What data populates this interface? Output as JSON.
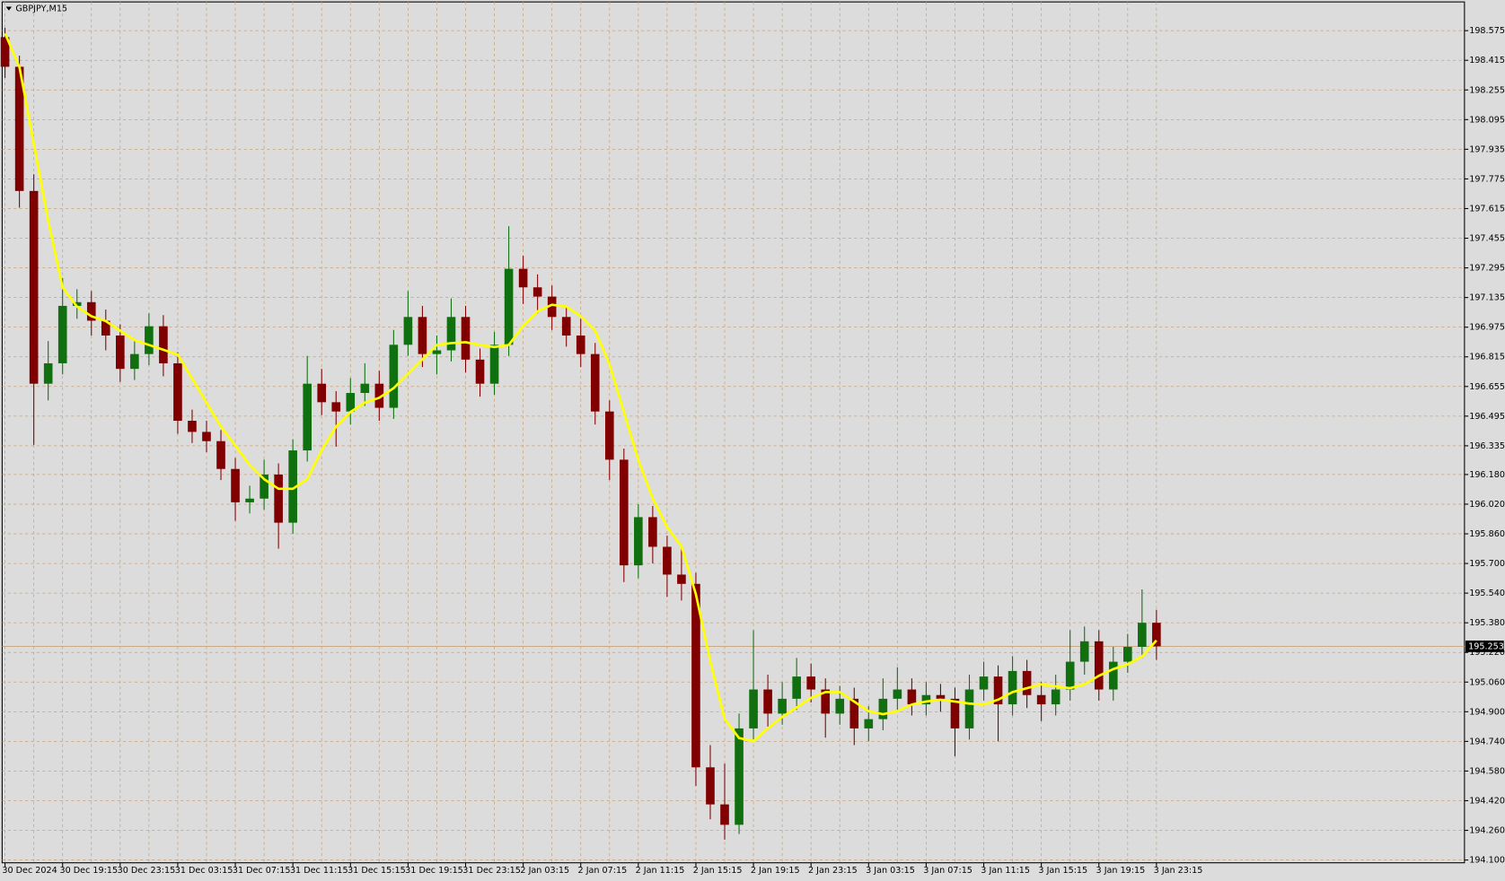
{
  "chart_data": {
    "type": "candlestick",
    "title": "GBPJPY,M15",
    "categories": [
      "30 Dec 2024",
      null,
      null,
      null,
      "30 Dec 19:15",
      null,
      null,
      null,
      "30 Dec 23:15",
      null,
      null,
      null,
      "31 Dec 03:15",
      null,
      null,
      null,
      "31 Dec 07:15",
      null,
      null,
      null,
      "31 Dec 11:15",
      null,
      null,
      null,
      "31 Dec 15:15",
      null,
      null,
      null,
      "31 Dec 19:15",
      null,
      null,
      null,
      "31 Dec 23:15",
      null,
      null,
      null,
      "2 Jan 03:15",
      null,
      null,
      null,
      "2 Jan 07:15",
      null,
      null,
      null,
      "2 Jan 11:15",
      null,
      null,
      null,
      "2 Jan 15:15",
      null,
      null,
      null,
      "2 Jan 19:15",
      null,
      null,
      null,
      "2 Jan 23:15",
      null,
      null,
      null,
      "3 Jan 03:15",
      null,
      null,
      null,
      "3 Jan 07:15",
      null,
      null,
      null,
      "3 Jan 11:15",
      null,
      null,
      null,
      "3 Jan 15:15",
      null,
      null,
      null,
      "3 Jan 19:15",
      null,
      null,
      null,
      "3 Jan 23:15"
    ],
    "open": [
      198.54,
      198.38,
      197.71,
      196.67,
      196.78,
      197.09,
      197.11,
      197.01,
      196.93,
      196.75,
      196.83,
      196.98,
      196.78,
      196.47,
      196.41,
      196.36,
      196.21,
      196.03,
      196.05,
      196.18,
      195.92,
      196.31,
      196.67,
      196.57,
      196.52,
      196.62,
      196.67,
      196.54,
      196.88,
      197.03,
      196.83,
      196.85,
      197.03,
      196.8,
      196.67,
      196.88,
      197.29,
      197.19,
      197.14,
      197.03,
      196.93,
      196.83,
      196.52,
      196.26,
      195.69,
      195.95,
      195.79,
      195.64,
      195.59,
      194.6,
      194.4,
      194.29,
      194.81,
      195.02,
      194.89,
      194.97,
      195.09,
      195.02,
      194.89,
      194.97,
      194.81,
      194.86,
      194.97,
      195.02,
      194.94,
      194.99,
      194.97,
      194.81,
      195.02,
      195.09,
      194.94,
      195.12,
      194.99,
      194.94,
      195.02,
      195.17,
      195.28,
      195.02,
      195.17,
      195.25,
      195.38
    ],
    "high": [
      198.59,
      198.44,
      197.8,
      196.9,
      197.24,
      197.18,
      197.17,
      197.07,
      196.99,
      196.9,
      197.05,
      197.04,
      196.84,
      196.53,
      196.47,
      196.42,
      196.27,
      196.12,
      196.26,
      196.24,
      196.37,
      196.82,
      196.75,
      196.63,
      196.7,
      196.78,
      196.74,
      196.96,
      197.17,
      197.09,
      196.93,
      197.13,
      197.09,
      196.86,
      196.95,
      197.52,
      197.36,
      197.26,
      197.2,
      197.09,
      197.02,
      196.89,
      196.58,
      196.32,
      196.02,
      196.01,
      195.85,
      195.79,
      195.65,
      194.72,
      194.62,
      194.89,
      195.34,
      195.1,
      195.06,
      195.19,
      195.16,
      195.08,
      195.04,
      195.03,
      194.93,
      195.08,
      195.14,
      195.08,
      195.06,
      195.05,
      195.03,
      195.1,
      195.17,
      195.15,
      195.2,
      195.18,
      195.06,
      195.1,
      195.34,
      195.36,
      195.34,
      195.25,
      195.32,
      195.56,
      195.45
    ],
    "low": [
      198.32,
      197.62,
      196.34,
      196.58,
      196.72,
      197.02,
      196.93,
      196.85,
      196.68,
      196.69,
      196.77,
      196.71,
      196.4,
      196.35,
      196.3,
      196.15,
      195.93,
      195.97,
      195.99,
      195.78,
      195.86,
      196.25,
      196.5,
      196.33,
      196.45,
      196.55,
      196.47,
      196.48,
      196.82,
      196.76,
      196.72,
      196.79,
      196.73,
      196.6,
      196.61,
      196.82,
      197.1,
      197.05,
      196.96,
      196.87,
      196.76,
      196.45,
      196.15,
      195.6,
      195.62,
      195.7,
      195.52,
      195.5,
      194.5,
      194.32,
      194.21,
      194.24,
      194.75,
      194.82,
      194.83,
      194.91,
      194.95,
      194.76,
      194.83,
      194.72,
      194.74,
      194.8,
      194.91,
      194.88,
      194.88,
      194.9,
      194.66,
      194.75,
      194.96,
      194.74,
      194.88,
      194.92,
      194.85,
      194.88,
      194.96,
      195.1,
      194.96,
      194.96,
      195.11,
      195.19,
      195.18
    ],
    "close": [
      198.38,
      197.71,
      196.67,
      196.78,
      197.09,
      197.11,
      197.01,
      196.93,
      196.75,
      196.83,
      196.98,
      196.78,
      196.47,
      196.41,
      196.36,
      196.21,
      196.03,
      196.05,
      196.18,
      195.92,
      196.31,
      196.67,
      196.57,
      196.52,
      196.62,
      196.67,
      196.54,
      196.88,
      197.03,
      196.83,
      196.85,
      197.03,
      196.8,
      196.67,
      196.88,
      197.29,
      197.19,
      197.14,
      197.03,
      196.93,
      196.83,
      196.52,
      196.26,
      195.69,
      195.95,
      195.79,
      195.64,
      195.59,
      194.6,
      194.4,
      194.29,
      194.81,
      195.02,
      194.89,
      194.97,
      195.09,
      195.02,
      194.89,
      194.97,
      194.81,
      194.86,
      194.97,
      195.02,
      194.94,
      194.99,
      194.97,
      194.81,
      195.02,
      195.09,
      194.94,
      195.12,
      194.99,
      194.94,
      195.02,
      195.17,
      195.28,
      195.02,
      195.17,
      195.25,
      195.38,
      195.253
    ],
    "up_color": "#107010",
    "down_color": "#800000",
    "ma": {
      "color": "#ffff00",
      "values": [
        198.56,
        198.379,
        197.965,
        197.551,
        197.189,
        197.086,
        197.034,
        197.008,
        196.956,
        196.905,
        196.879,
        196.853,
        196.827,
        196.698,
        196.568,
        196.439,
        196.336,
        196.232,
        196.155,
        196.103,
        196.103,
        196.155,
        196.31,
        196.439,
        196.517,
        196.568,
        196.594,
        196.646,
        196.724,
        196.801,
        196.879,
        196.889,
        196.894,
        196.879,
        196.868,
        196.879,
        196.982,
        197.06,
        197.096,
        197.086,
        197.034,
        196.956,
        196.775,
        196.517,
        196.258,
        196.051,
        195.896,
        195.792,
        195.534,
        195.172,
        194.861,
        194.758,
        194.742,
        194.81,
        194.872,
        194.923,
        194.975,
        195.006,
        195.006,
        194.955,
        194.903,
        194.887,
        194.903,
        194.939,
        194.955,
        194.965,
        194.955,
        194.944,
        194.939,
        194.965,
        195.006,
        195.027,
        195.048,
        195.037,
        195.027,
        195.048,
        195.094,
        195.13,
        195.156,
        195.198,
        195.285
      ]
    },
    "last_price": 195.253,
    "ylim": [
      194.085,
      198.73
    ],
    "yticks": [
      198.575,
      198.415,
      198.255,
      198.095,
      197.935,
      197.775,
      197.615,
      197.455,
      197.295,
      197.135,
      196.975,
      196.815,
      196.655,
      196.495,
      196.335,
      {
        "value": 196.18,
        "label": "196.180"
      },
      {
        "value": 196.02,
        "label": "196.020"
      },
      {
        "value": 195.86,
        "label": "195.860"
      },
      {
        "value": 195.7,
        "label": "195.700"
      },
      {
        "value": 195.54,
        "label": "195.540"
      },
      {
        "value": 195.38,
        "label": "195.380"
      },
      {
        "value": 195.22,
        "label": "195.220"
      },
      {
        "value": 195.06,
        "label": "195.060"
      },
      {
        "value": 194.9,
        "label": "194.900"
      },
      {
        "value": 194.74,
        "label": "194.740"
      },
      {
        "value": 194.58,
        "label": "194.580"
      },
      {
        "value": 194.42,
        "label": "194.420"
      },
      {
        "value": 194.26,
        "label": "194.260"
      },
      {
        "value": 194.1,
        "label": "194.100"
      }
    ],
    "grid": true
  }
}
